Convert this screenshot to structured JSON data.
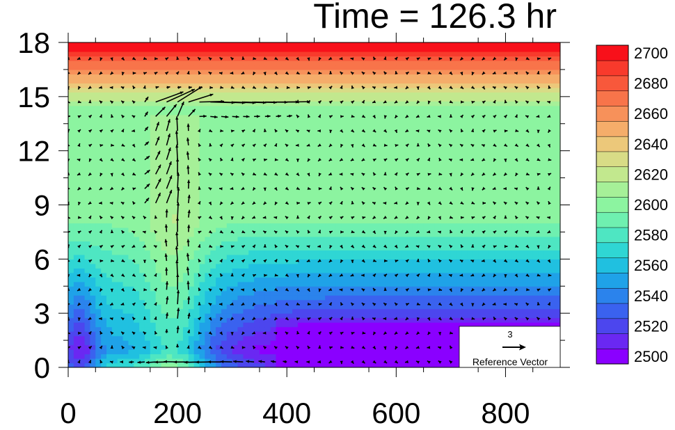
{
  "title": "Time = 126.3 hr",
  "chart_data": {
    "type": "heatmap",
    "title": "Time = 126.3 hr",
    "xlabel": "",
    "ylabel": "",
    "xlim": [
      0,
      900
    ],
    "ylim": [
      0,
      18
    ],
    "x_ticks": [
      0,
      200,
      400,
      600,
      800
    ],
    "y_ticks": [
      0,
      3,
      6,
      9,
      12,
      15,
      18
    ],
    "grid": false,
    "contour_field": {
      "description_levels": [
        2500,
        2510,
        2520,
        2530,
        2540,
        2550,
        2560,
        2570,
        2580,
        2590,
        2600,
        2610,
        2620,
        2630,
        2640,
        2650,
        2660,
        2670,
        2680,
        2690,
        2700
      ],
      "colors": [
        "#8a00ff",
        "#6a28f2",
        "#4c46ee",
        "#3a62ef",
        "#2b83ec",
        "#1fa2e8",
        "#20c0e0",
        "#2fd6d4",
        "#4ee6c2",
        "#6ff0b0",
        "#8cf4a0",
        "#a6f098",
        "#c2e88e",
        "#d8dc86",
        "#ecc87a",
        "#f5ad6a",
        "#f7915a",
        "#f8744a",
        "#f8583b",
        "#f83a2c",
        "#f8101a"
      ],
      "colorbar_labels": [
        2500,
        2520,
        2540,
        2560,
        2580,
        2600,
        2620,
        2640,
        2660,
        2680,
        2700
      ]
    },
    "reference_vector": {
      "magnitude_label": "3",
      "label": "Reference Vector"
    }
  }
}
